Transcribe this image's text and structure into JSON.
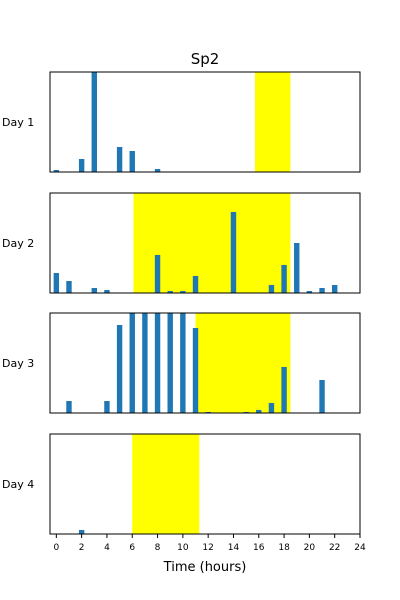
{
  "chart_data": {
    "type": "bar",
    "title": "Sp2",
    "xlabel": "Time (hours)",
    "xlim": [
      -0.5,
      24
    ],
    "x_ticks": [
      0,
      2,
      4,
      6,
      8,
      10,
      12,
      14,
      16,
      18,
      20,
      22,
      24
    ],
    "colors": {
      "bar": "#1f77b4",
      "highlight": "#ffff00",
      "axes": "#000000"
    },
    "panels": [
      {
        "label": "Day 1",
        "highlight": [
          15.7,
          18.5
        ],
        "ylim": [
          0,
          1
        ],
        "bars": [
          {
            "x": 0,
            "y": 0.02
          },
          {
            "x": 2,
            "y": 0.13
          },
          {
            "x": 3,
            "y": 1.0
          },
          {
            "x": 5,
            "y": 0.25
          },
          {
            "x": 6,
            "y": 0.21
          },
          {
            "x": 8,
            "y": 0.03
          }
        ]
      },
      {
        "label": "Day 2",
        "highlight": [
          6.1,
          18.5
        ],
        "ylim": [
          0,
          1
        ],
        "bars": [
          {
            "x": 0,
            "y": 0.2
          },
          {
            "x": 1,
            "y": 0.12
          },
          {
            "x": 3,
            "y": 0.05
          },
          {
            "x": 4,
            "y": 0.03
          },
          {
            "x": 8,
            "y": 0.38
          },
          {
            "x": 9,
            "y": 0.02
          },
          {
            "x": 10,
            "y": 0.02
          },
          {
            "x": 11,
            "y": 0.17
          },
          {
            "x": 14,
            "y": 0.81
          },
          {
            "x": 17,
            "y": 0.08
          },
          {
            "x": 18,
            "y": 0.28
          },
          {
            "x": 19,
            "y": 0.5
          },
          {
            "x": 20,
            "y": 0.02
          },
          {
            "x": 21,
            "y": 0.05
          },
          {
            "x": 22,
            "y": 0.08
          }
        ]
      },
      {
        "label": "Day 3",
        "highlight": [
          11.0,
          18.5
        ],
        "ylim": [
          0,
          1
        ],
        "bars": [
          {
            "x": 1,
            "y": 0.12
          },
          {
            "x": 4,
            "y": 0.12
          },
          {
            "x": 5,
            "y": 0.88
          },
          {
            "x": 6,
            "y": 1.0
          },
          {
            "x": 7,
            "y": 1.0
          },
          {
            "x": 8,
            "y": 1.0
          },
          {
            "x": 9,
            "y": 1.0
          },
          {
            "x": 10,
            "y": 1.0
          },
          {
            "x": 11,
            "y": 0.85
          },
          {
            "x": 12,
            "y": 0.01
          },
          {
            "x": 15,
            "y": 0.01
          },
          {
            "x": 16,
            "y": 0.03
          },
          {
            "x": 17,
            "y": 0.1
          },
          {
            "x": 18,
            "y": 0.46
          },
          {
            "x": 21,
            "y": 0.33
          }
        ]
      },
      {
        "label": "Day 4",
        "highlight": [
          6.0,
          11.3
        ],
        "ylim": [
          0,
          1
        ],
        "bars": [
          {
            "x": 2,
            "y": 0.04
          }
        ]
      }
    ]
  }
}
